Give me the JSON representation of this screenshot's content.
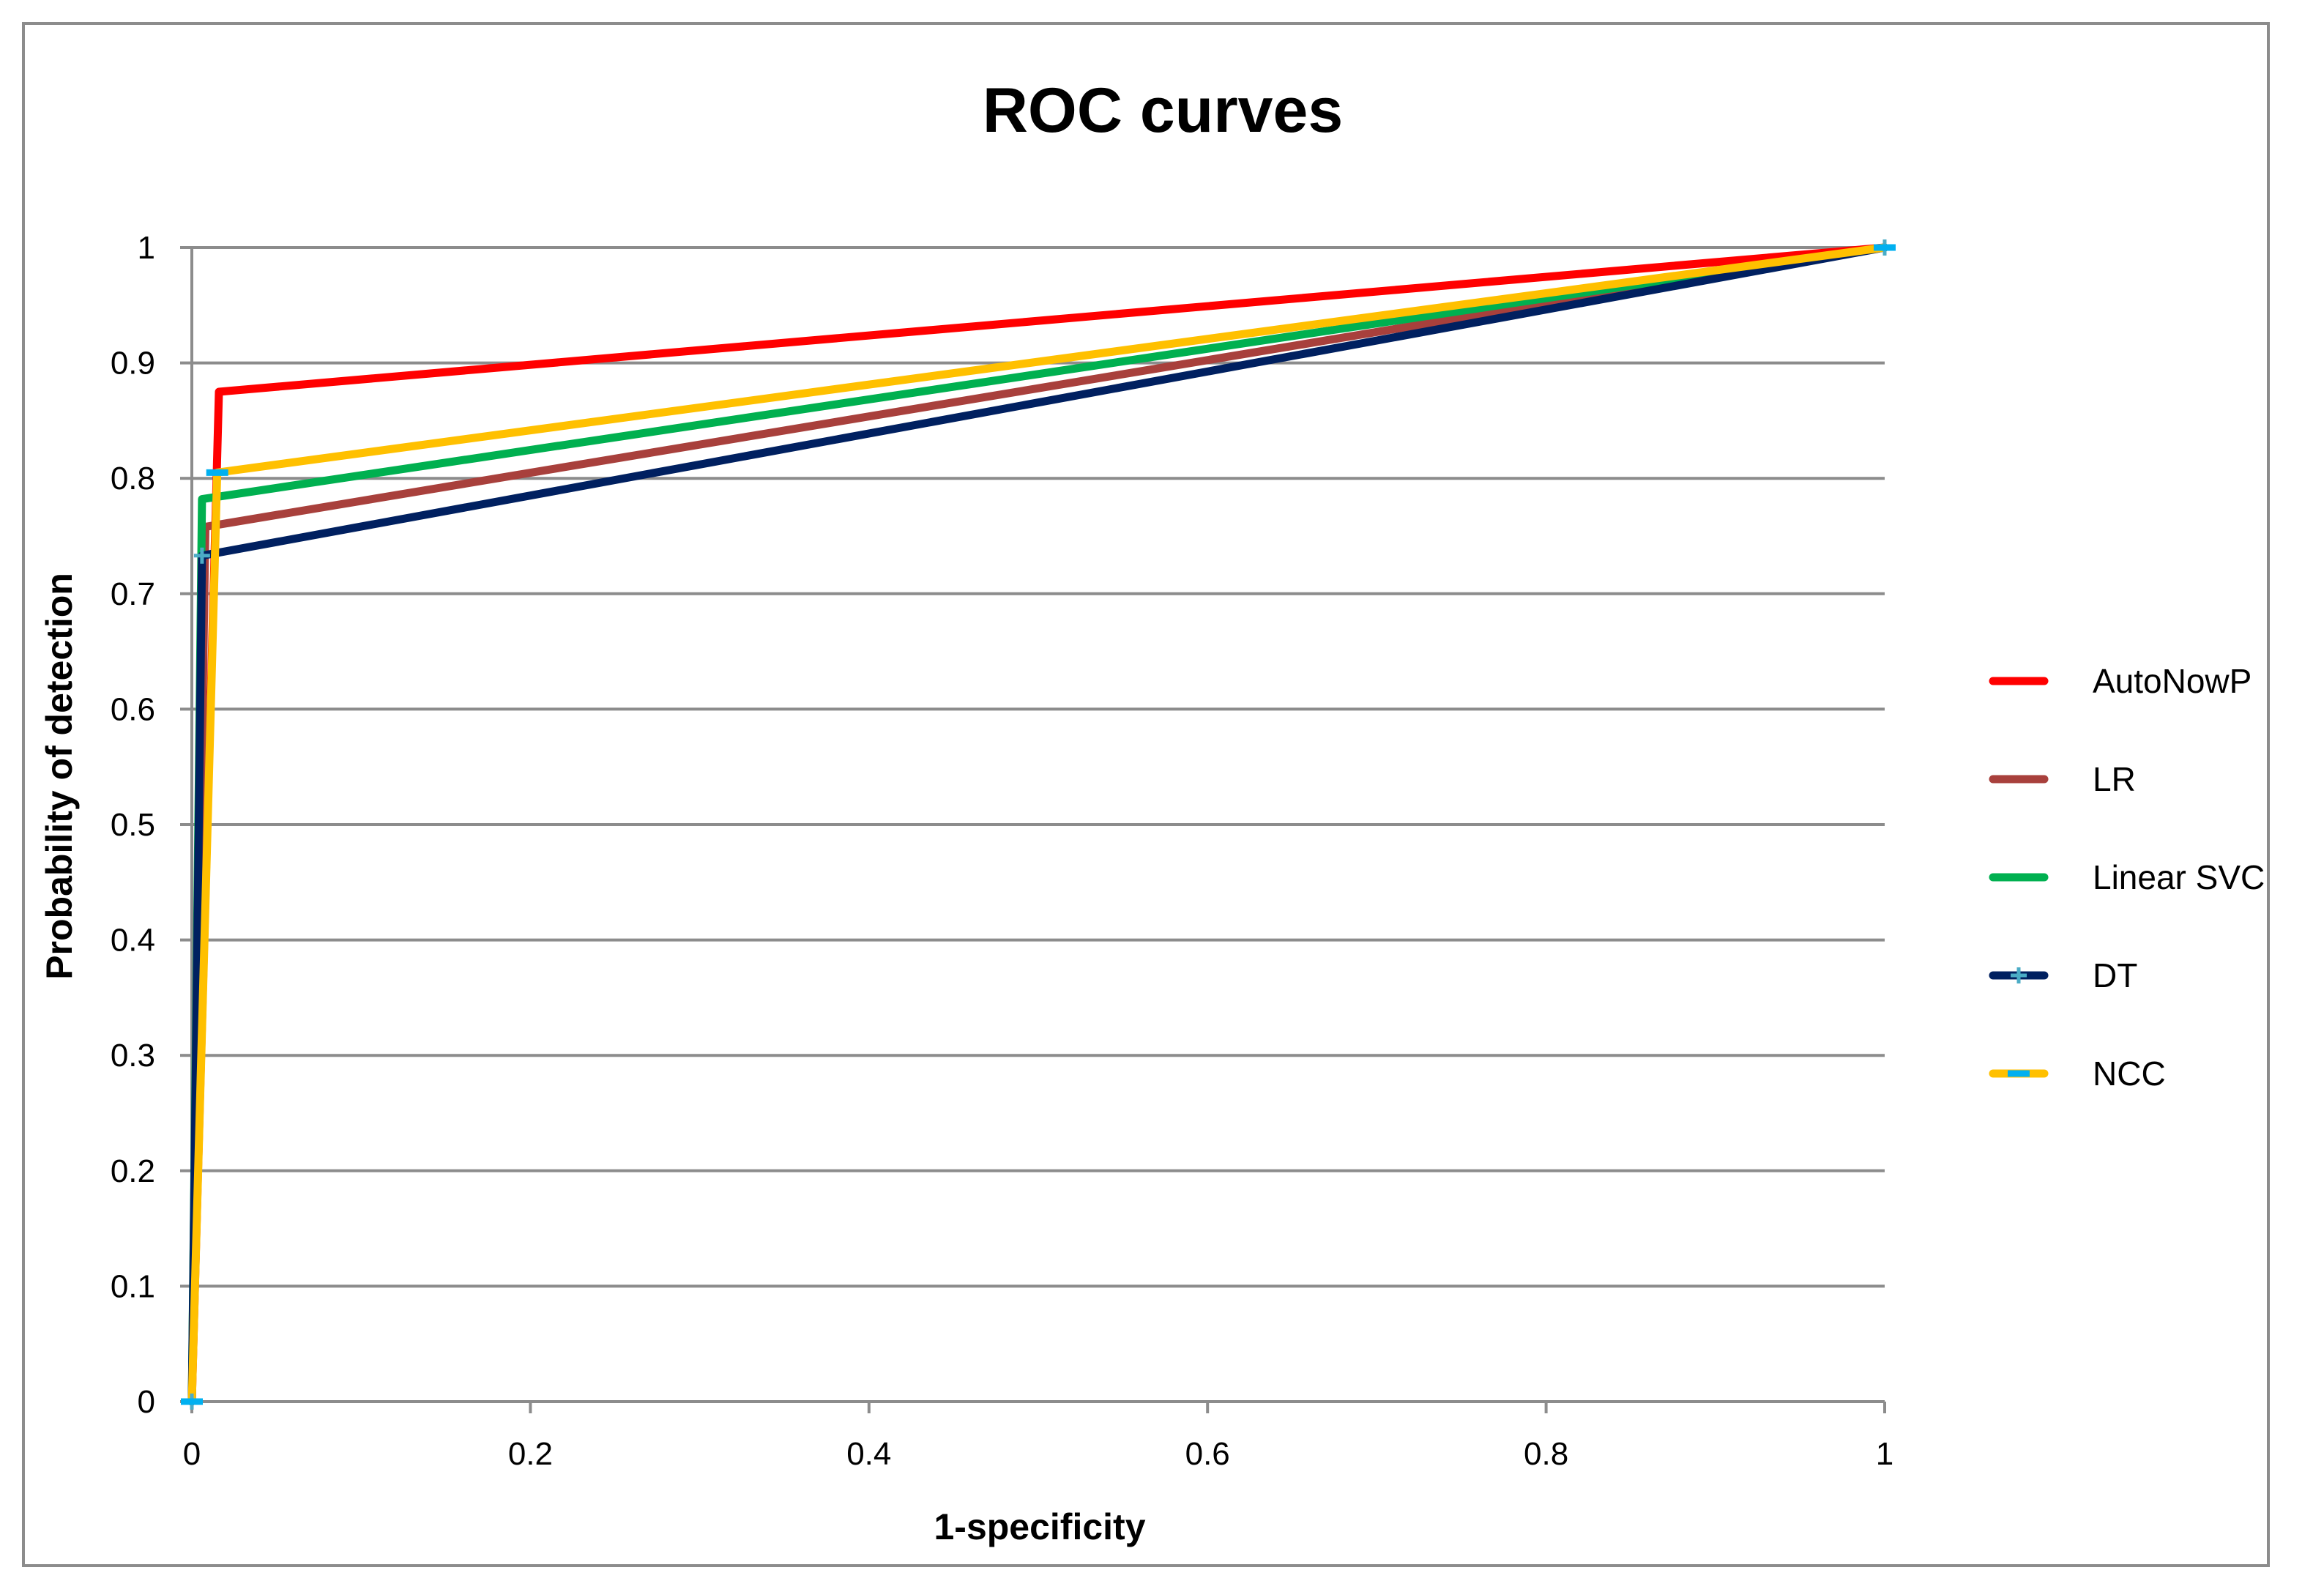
{
  "chart_data": {
    "type": "line",
    "title": "ROC curves",
    "xlabel": "1-specificity",
    "ylabel": "Probability of detection",
    "xlim": [
      0,
      1
    ],
    "ylim": [
      0,
      1
    ],
    "xticks": [
      0,
      0.2,
      0.4,
      0.6,
      0.8,
      1
    ],
    "xtick_labels": [
      "0",
      "0.2",
      "0.4",
      "0.6",
      "0.8",
      "1"
    ],
    "yticks": [
      0,
      0.1,
      0.2,
      0.3,
      0.4,
      0.5,
      0.6,
      0.7,
      0.8,
      0.9,
      1
    ],
    "ytick_labels": [
      "0",
      "0.1",
      "0.2",
      "0.3",
      "0.4",
      "0.5",
      "0.6",
      "0.7",
      "0.8",
      "0.9",
      "1"
    ],
    "grid": "horizontal",
    "legend_position": "right",
    "series": [
      {
        "name": "AutoNowP",
        "color": "#ff0000",
        "marker": "none",
        "x": [
          0,
          0.016,
          1
        ],
        "y": [
          0,
          0.875,
          1
        ]
      },
      {
        "name": "LR",
        "color": "#a8403c",
        "marker": "none",
        "x": [
          0,
          0.008,
          1
        ],
        "y": [
          0,
          0.758,
          1
        ]
      },
      {
        "name": "Linear SVC",
        "color": "#00b050",
        "marker": "none",
        "x": [
          0,
          0.006,
          1
        ],
        "y": [
          0,
          0.782,
          1
        ]
      },
      {
        "name": "DT",
        "color": "#002060",
        "marker": "plus",
        "marker_color": "#4bacc6",
        "x": [
          0,
          0.006,
          1
        ],
        "y": [
          0,
          0.733,
          1
        ]
      },
      {
        "name": "NCC",
        "color": "#ffc000",
        "marker": "dash",
        "marker_color": "#00b0f0",
        "x": [
          0,
          0.015,
          1
        ],
        "y": [
          0,
          0.805,
          1
        ]
      }
    ]
  }
}
